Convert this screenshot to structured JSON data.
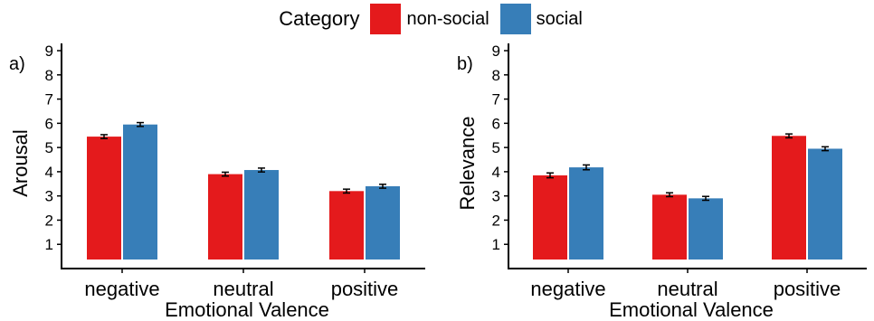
{
  "legend": {
    "title": "Category",
    "items": [
      {
        "label": "non-social",
        "color": "#E41A1C"
      },
      {
        "label": "social",
        "color": "#377EB8"
      }
    ]
  },
  "chart_data": [
    {
      "type": "bar",
      "panel_label": "a)",
      "categories": [
        "negative",
        "neutral",
        "positive"
      ],
      "series": [
        {
          "name": "non-social",
          "color": "#E41A1C",
          "values": [
            5.45,
            3.9,
            3.2
          ],
          "errors": [
            0.08,
            0.08,
            0.08
          ]
        },
        {
          "name": "social",
          "color": "#377EB8",
          "values": [
            5.95,
            4.07,
            3.4
          ],
          "errors": [
            0.08,
            0.08,
            0.08
          ]
        }
      ],
      "xlabel": "Emotional Valence",
      "ylabel": "Arousal",
      "yticks": [
        1,
        2,
        3,
        4,
        5,
        6,
        7,
        8,
        9
      ],
      "ylim": [
        0,
        9.3
      ],
      "grid": false
    },
    {
      "type": "bar",
      "panel_label": "b)",
      "categories": [
        "negative",
        "neutral",
        "positive"
      ],
      "series": [
        {
          "name": "non-social",
          "color": "#E41A1C",
          "values": [
            3.85,
            3.05,
            5.48
          ],
          "errors": [
            0.1,
            0.08,
            0.08
          ]
        },
        {
          "name": "social",
          "color": "#377EB8",
          "values": [
            4.18,
            2.9,
            4.95
          ],
          "errors": [
            0.1,
            0.08,
            0.08
          ]
        }
      ],
      "xlabel": "Emotional Valence",
      "ylabel": "Relevance",
      "yticks": [
        1,
        2,
        3,
        4,
        5,
        6,
        7,
        8,
        9
      ],
      "ylim": [
        0,
        9.3
      ],
      "grid": false
    }
  ]
}
